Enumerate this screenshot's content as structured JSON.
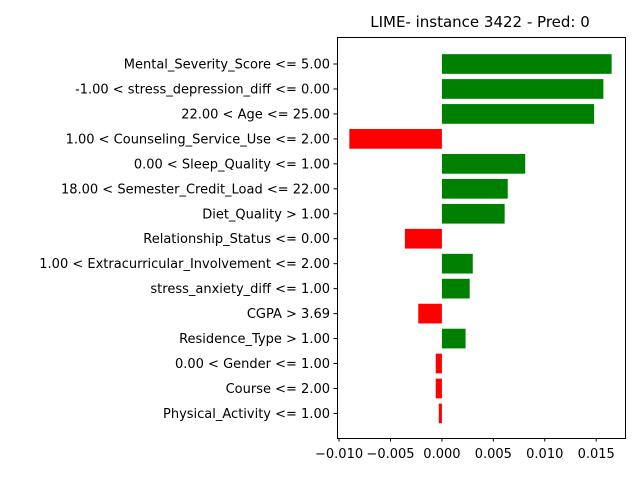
{
  "chart_data": {
    "type": "bar",
    "orientation": "horizontal",
    "title": "LIME- instance 3422 - Pred: 0",
    "xlabel": "",
    "ylabel": "",
    "xlim": [
      -0.0102,
      0.0178
    ],
    "grid": false,
    "categories": [
      "Mental_Severity_Score <= 5.00",
      "-1.00 < stress_depression_diff <= 0.00",
      "22.00 < Age <= 25.00",
      "1.00 < Counseling_Service_Use <= 2.00",
      "0.00 < Sleep_Quality <= 1.00",
      "18.00 < Semester_Credit_Load <= 22.00",
      "Diet_Quality > 1.00",
      "Relationship_Status <= 0.00",
      "1.00 < Extracurricular_Involvement <= 2.00",
      "stress_anxiety_diff <= 1.00",
      "CGPA > 3.69",
      "Residence_Type > 1.00",
      "0.00 < Gender <= 1.00",
      "Course <= 2.00",
      "Physical_Activity <= 1.00"
    ],
    "values": [
      0.0165,
      0.0157,
      0.0148,
      -0.009,
      0.0081,
      0.0064,
      0.0061,
      -0.0036,
      0.003,
      0.0027,
      -0.0023,
      0.0023,
      -0.0006,
      -0.0006,
      -0.0003
    ],
    "xticks": [
      -0.01,
      -0.005,
      0.0,
      0.005,
      0.01,
      0.015
    ],
    "xtick_labels": [
      "−0.010",
      "−0.005",
      "0.000",
      "0.005",
      "0.010",
      "0.015"
    ],
    "colors": {
      "positive": "#008000",
      "negative": "#ff0000"
    }
  }
}
